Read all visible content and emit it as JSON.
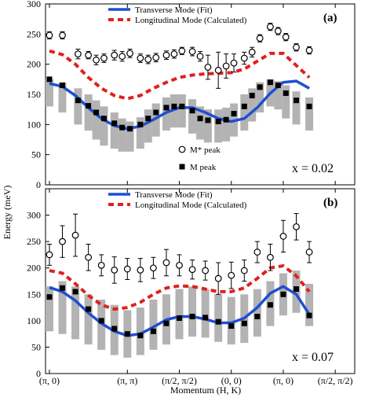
{
  "chart_data": [
    {
      "type": "scatter",
      "panel_label": "(a)",
      "doping_label": "x = 0.02",
      "ylim": [
        0,
        300
      ],
      "yticks": [
        0,
        50,
        100,
        150,
        200,
        250,
        300
      ],
      "legend": {
        "transverse": "Transverse Mode (Fit)",
        "longitudinal": "Longitudinal Mode (Calculated)",
        "mstar": "M* peak",
        "m": "M peak"
      },
      "colors": {
        "transverse": "#1f4fd1",
        "longitudinal": "#e0201e",
        "band": "#b3b3b3"
      },
      "series": [
        {
          "name": "M* peak",
          "x": [
            0,
            1,
            2.2,
            3,
            3.6,
            4.2,
            5,
            5.6,
            6.2,
            7,
            7.6,
            8.2,
            9,
            9.6,
            10.2,
            11,
            11.6,
            12.2,
            13,
            13.6,
            14.2,
            15,
            15.6,
            16.2,
            17,
            17.6,
            18.2,
            19,
            20
          ],
          "y": [
            248,
            248,
            217,
            215,
            207,
            210,
            215,
            213,
            218,
            210,
            208,
            211,
            215,
            217,
            222,
            221,
            213,
            195,
            190,
            197,
            202,
            210,
            220,
            243,
            262,
            255,
            245,
            228,
            223
          ],
          "err": [
            6,
            6,
            8,
            6,
            8,
            7,
            8,
            8,
            7,
            7,
            7,
            7,
            7,
            7,
            6,
            7,
            8,
            20,
            30,
            20,
            15,
            10,
            8,
            6,
            6,
            6,
            6,
            6,
            6
          ]
        },
        {
          "name": "M peak",
          "x": [
            0,
            1,
            2.2,
            3,
            3.6,
            4.2,
            5,
            5.6,
            6.2,
            7,
            7.6,
            8.2,
            9,
            9.6,
            10.2,
            11,
            11.6,
            12.2,
            13,
            13.6,
            14.2,
            15,
            15.6,
            16.2,
            17,
            17.6,
            18.2,
            19,
            20
          ],
          "y": [
            175,
            165,
            140,
            131,
            120,
            110,
            102,
            95,
            93,
            100,
            110,
            120,
            128,
            130,
            130,
            123,
            110,
            107,
            105,
            108,
            118,
            130,
            148,
            162,
            170,
            165,
            152,
            140,
            130
          ]
        },
        {
          "name": "Transverse Mode (Fit)",
          "x": [
            0,
            1,
            2,
            3,
            4,
            5,
            6,
            7,
            8,
            9,
            10,
            11,
            12,
            13,
            14,
            15,
            16,
            17,
            18,
            19,
            20
          ],
          "y": [
            168,
            163,
            148,
            128,
            110,
            98,
            93,
            97,
            108,
            120,
            128,
            128,
            120,
            110,
            105,
            110,
            128,
            152,
            170,
            172,
            160
          ]
        },
        {
          "name": "Longitudinal Mode (Calculated)",
          "x": [
            0,
            1,
            2,
            3,
            4,
            5,
            6,
            7,
            8,
            9,
            10,
            11,
            12,
            13,
            14,
            15,
            16,
            17,
            18,
            19,
            20
          ],
          "y": [
            222,
            216,
            200,
            178,
            160,
            148,
            143,
            148,
            160,
            170,
            178,
            182,
            184,
            185,
            186,
            192,
            205,
            218,
            218,
            198,
            178
          ]
        }
      ],
      "bands": {
        "x": [
          0,
          1,
          2.2,
          3,
          3.6,
          4.2,
          5,
          5.6,
          6.2,
          7,
          7.6,
          8.2,
          9,
          9.6,
          10.2,
          11,
          11.6,
          12.2,
          13,
          13.6,
          14.2,
          15,
          15.6,
          16.2,
          17,
          17.6,
          18.2,
          19,
          20
        ],
        "low": [
          130,
          120,
          100,
          90,
          75,
          65,
          60,
          55,
          55,
          60,
          70,
          80,
          90,
          95,
          95,
          85,
          75,
          70,
          70,
          72,
          80,
          90,
          105,
          120,
          130,
          125,
          110,
          100,
          90
        ],
        "high": [
          175,
          170,
          160,
          150,
          140,
          130,
          120,
          110,
          105,
          112,
          125,
          135,
          145,
          150,
          150,
          142,
          130,
          125,
          125,
          128,
          135,
          150,
          160,
          170,
          175,
          172,
          165,
          155,
          145
        ]
      }
    },
    {
      "type": "scatter",
      "panel_label": "(b)",
      "doping_label": "x = 0.07",
      "ylim": [
        0,
        350
      ],
      "yticks": [
        0,
        50,
        100,
        150,
        200,
        250,
        300
      ],
      "legend": {
        "transverse": "Transverse Mode (Fit)",
        "longitudinal": "Longitudinal Mode (Calculated)"
      },
      "colors": {
        "transverse": "#1f4fd1",
        "longitudinal": "#e0201e",
        "band": "#b3b3b3"
      },
      "series": [
        {
          "name": "M* peak",
          "x": [
            0,
            1,
            2,
            3,
            4,
            5,
            6,
            7,
            8,
            9,
            10,
            11,
            12,
            13,
            14,
            15,
            16,
            17,
            18,
            19,
            20
          ],
          "y": [
            225,
            250,
            262,
            220,
            205,
            196,
            198,
            196,
            200,
            210,
            205,
            197,
            195,
            180,
            186,
            195,
            230,
            220,
            260,
            278,
            230
          ],
          "err": [
            20,
            30,
            40,
            25,
            20,
            25,
            20,
            22,
            20,
            25,
            20,
            18,
            18,
            30,
            25,
            20,
            20,
            25,
            30,
            25,
            20
          ]
        },
        {
          "name": "M peak",
          "x": [
            0,
            1,
            2,
            3,
            4,
            5,
            6,
            7,
            8,
            9,
            10,
            11,
            12,
            13,
            14,
            15,
            16,
            17,
            18,
            19,
            20
          ],
          "y": [
            145,
            162,
            155,
            122,
            100,
            85,
            75,
            72,
            80,
            95,
            105,
            108,
            106,
            98,
            90,
            95,
            108,
            130,
            150,
            160,
            110
          ]
        },
        {
          "name": "Transverse Mode (Fit)",
          "x": [
            0,
            1,
            2,
            3,
            4,
            5,
            6,
            7,
            8,
            9,
            10,
            11,
            12,
            13,
            14,
            15,
            16,
            17,
            18,
            19,
            20
          ],
          "y": [
            163,
            155,
            138,
            115,
            95,
            80,
            72,
            75,
            88,
            102,
            108,
            108,
            103,
            96,
            96,
            105,
            125,
            152,
            165,
            150,
            112
          ]
        },
        {
          "name": "Longitudinal Mode (Calculated)",
          "x": [
            0,
            1,
            2,
            3,
            4,
            5,
            6,
            7,
            8,
            9,
            10,
            11,
            12,
            13,
            14,
            15,
            16,
            17,
            18,
            19,
            20
          ],
          "y": [
            195,
            190,
            170,
            148,
            130,
            122,
            125,
            135,
            150,
            162,
            166,
            165,
            160,
            155,
            155,
            162,
            180,
            200,
            204,
            185,
            155
          ]
        }
      ],
      "bands": {
        "x": [
          0,
          1,
          2,
          3,
          4,
          5,
          6,
          7,
          8,
          9,
          10,
          11,
          12,
          13,
          14,
          15,
          16,
          17,
          18,
          19,
          20
        ],
        "low": [
          80,
          75,
          65,
          55,
          45,
          35,
          30,
          35,
          45,
          55,
          65,
          70,
          68,
          60,
          55,
          58,
          70,
          90,
          110,
          115,
          90
        ],
        "high": [
          165,
          175,
          165,
          150,
          140,
          130,
          120,
          125,
          140,
          150,
          160,
          165,
          160,
          150,
          145,
          150,
          160,
          175,
          190,
          195,
          170
        ]
      }
    }
  ],
  "xaxis": {
    "tick_labels": [
      "(π, 0)",
      "(π, π)",
      "(π/2, π/2)",
      "(0, 0)",
      "(π, 0)",
      "(π/2, π/2)"
    ],
    "tick_positions": [
      0,
      6,
      10,
      14,
      18,
      22
    ],
    "label": "Momentum (H, K)"
  },
  "yaxis_label": "Energy (meV)"
}
